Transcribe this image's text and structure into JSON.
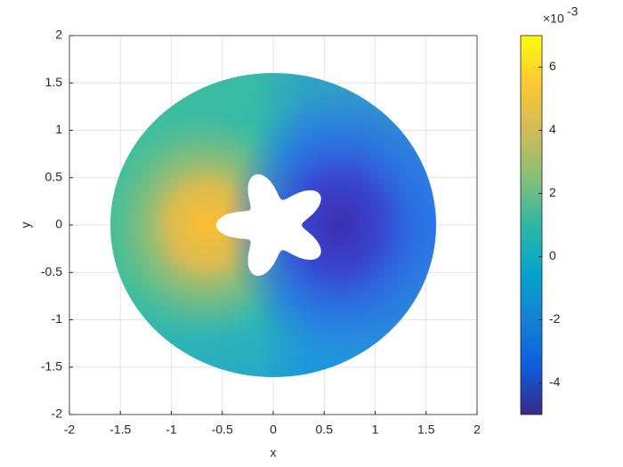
{
  "chart_data": {
    "type": "field",
    "x_label": "x",
    "y_label": "y",
    "xlim": [
      -2,
      2
    ],
    "xticks": [
      -2,
      -1.5,
      -1,
      -0.5,
      0,
      0.5,
      1,
      1.5,
      2
    ],
    "ylim": [
      -2,
      2
    ],
    "yticks": [
      -2,
      -1.5,
      -1,
      -0.5,
      0,
      0.5,
      1,
      1.5,
      2
    ],
    "grid": true,
    "colorbar": {
      "lim": [
        -5,
        7
      ],
      "ticks": [
        -4,
        -2,
        0,
        2,
        4,
        6
      ],
      "multiplier": "×10",
      "exponent": "-3",
      "colors": [
        "#352a87",
        "#0f5cdd",
        "#1481d6",
        "#06a4ca",
        "#2eb7a4",
        "#87bf77",
        "#d1bb59",
        "#fec832",
        "#f9fb0e"
      ]
    }
  }
}
